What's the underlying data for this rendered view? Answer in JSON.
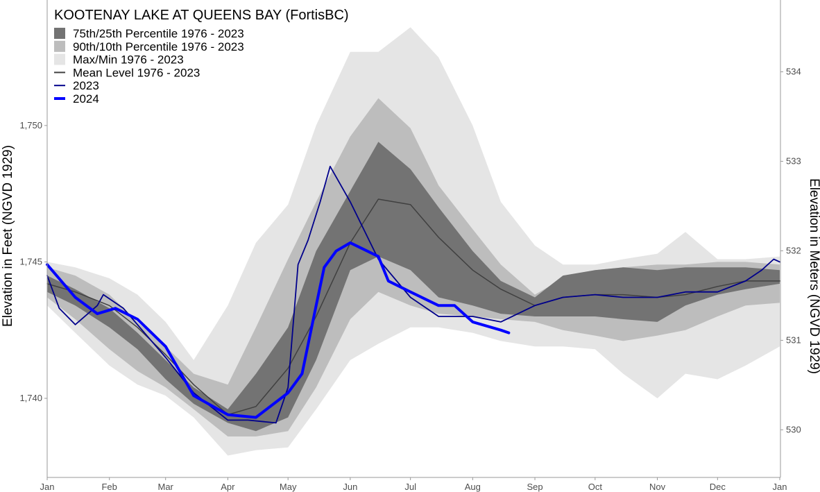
{
  "chart_data": {
    "type": "area",
    "title": "KOOTENAY LAKE AT QUEENS BAY (FortisBC)",
    "ylabel": "Elevation in Feet (NGVD 1929)",
    "ylabel_right": "Elevation in Meters (NGVD 1929)",
    "ylim": [
      1737.1,
      1754.6
    ],
    "yticks": [
      "1,740",
      "1,745",
      "1,750"
    ],
    "yticks_values": [
      1740,
      1745,
      1750
    ],
    "yticks_right": [
      530,
      531,
      532,
      533,
      534
    ],
    "feet_per_meter": 3.28084,
    "xticks": [
      "Jan",
      "Feb",
      "Mar",
      "Apr",
      "May",
      "Jun",
      "Jul",
      "Aug",
      "Sep",
      "Oct",
      "Nov",
      "Dec",
      "Jan"
    ],
    "grid": false,
    "legend_placement": "top-left",
    "colors": {
      "p25_75": "#737373",
      "p10_90": "#bdbdbd",
      "maxmin": "#e5e5e5",
      "mean": "#404040",
      "y2023": "#00008b",
      "y2024": "#0000ff"
    },
    "legend": [
      {
        "label": "75th/25th Percentile 1976 - 2023",
        "kind": "box",
        "key": "p25_75"
      },
      {
        "label": "90th/10th Percentile 1976 - 2023",
        "kind": "box",
        "key": "p10_90"
      },
      {
        "label": "Max/Min 1976 - 2023",
        "kind": "box",
        "key": "maxmin"
      },
      {
        "label": "Mean Level 1976 - 2023",
        "kind": "line",
        "key": "mean"
      },
      {
        "label": "2023",
        "kind": "line",
        "key": "y2023"
      },
      {
        "label": "2024",
        "kind": "thick",
        "key": "y2024"
      }
    ],
    "x": [
      "01-01",
      "01-15",
      "02-01",
      "02-15",
      "03-01",
      "03-15",
      "04-01",
      "04-15",
      "05-01",
      "05-15",
      "06-01",
      "06-15",
      "07-01",
      "07-15",
      "08-01",
      "08-15",
      "09-01",
      "09-15",
      "10-01",
      "10-15",
      "11-01",
      "11-15",
      "12-01",
      "12-15",
      "12-31"
    ],
    "bands": {
      "max": [
        1745.0,
        1744.8,
        1744.4,
        1743.8,
        1742.8,
        1741.4,
        1743.4,
        1745.7,
        1747.1,
        1750.0,
        1752.7,
        1752.7,
        1753.6,
        1752.5,
        1750.0,
        1747.2,
        1745.6,
        1744.9,
        1744.9,
        1745.1,
        1745.3,
        1746.1,
        1745.1,
        1745.1,
        1745.2
      ],
      "min": [
        1743.4,
        1742.4,
        1741.2,
        1740.5,
        1740.1,
        1739.3,
        1737.9,
        1738.1,
        1738.2,
        1739.6,
        1741.4,
        1742.0,
        1742.6,
        1742.6,
        1742.4,
        1742.1,
        1741.9,
        1741.9,
        1741.8,
        1740.9,
        1740.0,
        1740.9,
        1740.7,
        1741.2,
        1741.9
      ],
      "p90": [
        1744.8,
        1744.5,
        1743.8,
        1742.8,
        1741.9,
        1740.9,
        1740.5,
        1742.6,
        1745.1,
        1747.2,
        1749.6,
        1751.0,
        1749.9,
        1747.8,
        1746.2,
        1744.9,
        1743.8,
        1744.4,
        1744.7,
        1744.8,
        1744.9,
        1744.9,
        1745.0,
        1745.0,
        1744.9
      ],
      "p10": [
        1743.7,
        1742.9,
        1741.8,
        1741.0,
        1740.4,
        1739.6,
        1738.6,
        1738.6,
        1738.8,
        1740.4,
        1742.9,
        1743.9,
        1743.4,
        1743.1,
        1743.0,
        1742.9,
        1742.8,
        1742.5,
        1742.3,
        1742.1,
        1742.3,
        1742.5,
        1743.0,
        1743.4,
        1743.5
      ],
      "p75": [
        1744.5,
        1744.0,
        1743.3,
        1742.4,
        1741.4,
        1740.4,
        1739.6,
        1740.9,
        1742.6,
        1745.4,
        1747.6,
        1749.4,
        1748.4,
        1747.0,
        1745.4,
        1744.3,
        1743.7,
        1744.5,
        1744.7,
        1744.8,
        1744.7,
        1744.8,
        1744.8,
        1744.8,
        1744.7
      ],
      "p25": [
        1743.9,
        1743.4,
        1742.6,
        1741.8,
        1740.7,
        1739.8,
        1739.1,
        1738.8,
        1739.3,
        1741.4,
        1744.7,
        1745.2,
        1744.7,
        1743.7,
        1743.4,
        1743.1,
        1743.0,
        1743.0,
        1743.0,
        1742.9,
        1742.8,
        1743.4,
        1743.8,
        1744.0,
        1744.2
      ]
    },
    "mean": [
      1744.2,
      1743.9,
      1743.4,
      1742.6,
      1741.6,
      1740.5,
      1739.4,
      1739.7,
      1741.1,
      1743.0,
      1745.7,
      1747.3,
      1747.1,
      1745.9,
      1744.7,
      1744.0,
      1743.4,
      1743.7,
      1743.8,
      1743.8,
      1743.7,
      1743.8,
      1744.1,
      1744.3,
      1744.3
    ],
    "series": [
      {
        "name": "2023",
        "x": [
          "01-01",
          "01-07",
          "01-15",
          "01-26",
          "01-29",
          "02-08",
          "03-01",
          "03-15",
          "04-01",
          "04-11",
          "04-25",
          "05-01",
          "05-06",
          "05-11",
          "05-17",
          "05-22",
          "06-01",
          "06-15",
          "07-01",
          "07-15",
          "08-01",
          "08-15",
          "09-01",
          "09-15",
          "10-01",
          "10-15",
          "11-01",
          "11-15",
          "12-01",
          "12-15",
          "12-23",
          "12-29",
          "12-31"
        ],
        "values": [
          1744.5,
          1743.3,
          1742.7,
          1743.4,
          1743.8,
          1743.3,
          1741.5,
          1740.2,
          1739.2,
          1739.2,
          1739.1,
          1740.4,
          1744.9,
          1745.8,
          1747.2,
          1748.5,
          1747.2,
          1745.1,
          1743.7,
          1743.0,
          1743.0,
          1742.8,
          1743.4,
          1743.7,
          1743.8,
          1743.7,
          1743.7,
          1743.9,
          1743.9,
          1744.3,
          1744.7,
          1745.1,
          1745.0
        ]
      },
      {
        "name": "2024",
        "x": [
          "01-01",
          "01-15",
          "01-26",
          "02-04",
          "02-15",
          "03-01",
          "03-15",
          "04-01",
          "04-15",
          "05-01",
          "05-08",
          "05-15",
          "05-19",
          "05-25",
          "06-01",
          "06-15",
          "06-20",
          "07-01",
          "07-15",
          "07-23",
          "08-01",
          "08-15",
          "08-19"
        ],
        "values": [
          1744.9,
          1743.7,
          1743.1,
          1743.3,
          1742.9,
          1741.9,
          1740.1,
          1739.4,
          1739.3,
          1740.2,
          1740.9,
          1743.4,
          1744.8,
          1745.4,
          1745.7,
          1745.2,
          1744.3,
          1743.9,
          1743.4,
          1743.4,
          1742.8,
          1742.5,
          1742.4
        ]
      }
    ]
  }
}
